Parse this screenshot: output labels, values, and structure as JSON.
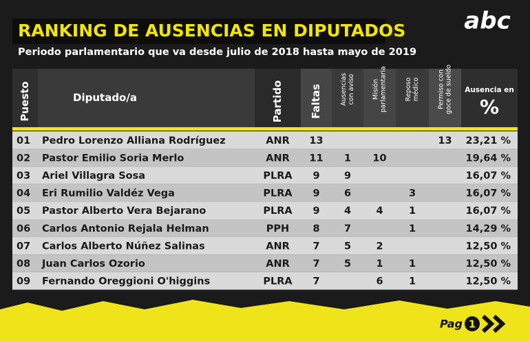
{
  "header": {
    "title": "RANKING DE AUSENCIAS EN DIPUTADOS",
    "subtitle": "Periodo parlamentario que va desde julio de 2018 hasta mayo de 2019",
    "logo": "abc"
  },
  "table": {
    "headers": [
      [
        "Puesto"
      ],
      [
        "Diputado/a"
      ],
      [
        "Partido"
      ],
      [
        "Faltas"
      ],
      [
        "Ausencias",
        "con aviso"
      ],
      [
        "Misión",
        "parlamentaria"
      ],
      [
        "Reposo",
        "médico"
      ],
      [
        "Permiso con",
        "goce de sueldo"
      ],
      [
        "Ausencia en",
        "%"
      ]
    ],
    "rows": [
      [
        "01",
        "Pedro Lorenzo Alliana Rodríguez",
        "ANR",
        "13",
        null,
        null,
        null,
        "13",
        "23,21 %"
      ],
      [
        "02",
        "Pastor Emilio Soria Merlo",
        "ANR",
        "11",
        "1",
        "10",
        null,
        null,
        "19,64 %"
      ],
      [
        "03",
        "Ariel Villagra Sosa",
        "PLRA",
        "9",
        "9",
        null,
        null,
        null,
        "16,07 %"
      ],
      [
        "04",
        "Eri Rumilio Valdéz Vega",
        "PLRA",
        "9",
        "6",
        null,
        "3",
        null,
        "16,07 %"
      ],
      [
        "05",
        "Pastor Alberto Vera Bejarano",
        "PLRA",
        "9",
        "4",
        "4",
        "1",
        null,
        "16,07 %"
      ],
      [
        "06",
        "Carlos Antonio Rejala Helman",
        "PPH",
        "8",
        "7",
        null,
        "1",
        null,
        "14,29 %"
      ],
      [
        "07",
        "Carlos Alberto Núñez Salinas",
        "ANR",
        "7",
        "5",
        "2",
        null,
        null,
        "12,50 %"
      ],
      [
        "08",
        "Juan Carlos Ozorio",
        "ANR",
        "7",
        "5",
        "1",
        "1",
        null,
        "12,50 %"
      ],
      [
        "09",
        "Fernando Oreggioni O'higgins",
        "PLRA",
        "7",
        null,
        "6",
        "1",
        null,
        "12,50 %"
      ]
    ]
  },
  "footer": {
    "page_label": "Pag",
    "page_number": "1"
  }
}
